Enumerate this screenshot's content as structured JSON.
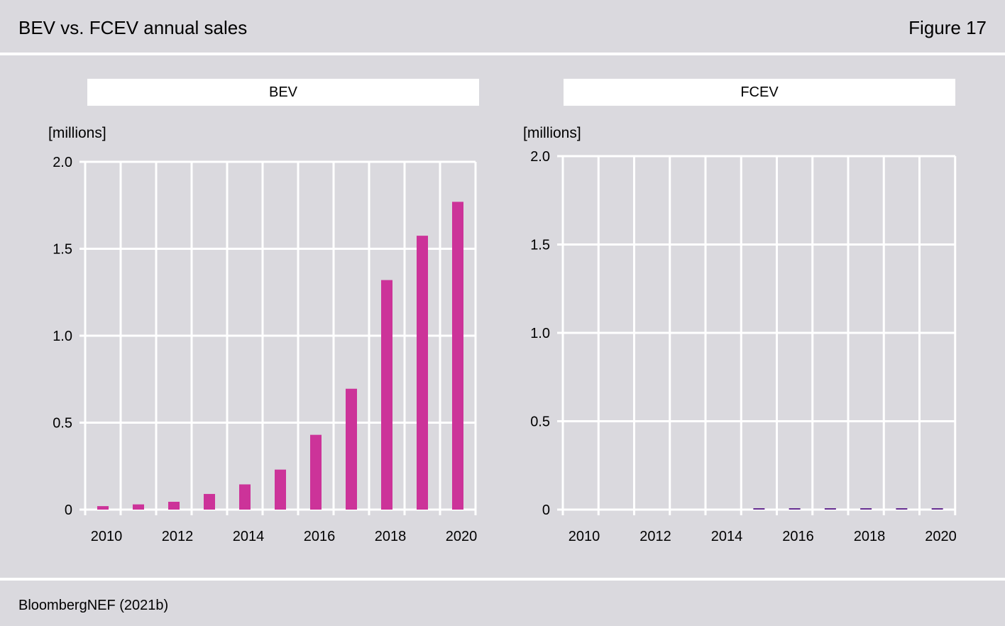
{
  "header": {
    "title": "BEV vs. FCEV annual sales",
    "figure_label": "Figure 17"
  },
  "footer": {
    "source": "BloombergNEF (2021b)"
  },
  "colors": {
    "background": "#dad9de",
    "grid": "#ffffff",
    "bev_bar": "#cc3399",
    "fcev_bar": "#662d91"
  },
  "chart_data": [
    {
      "type": "bar",
      "panel_title": "BEV",
      "ylabel": "[millions]",
      "ylim": [
        0,
        2.0
      ],
      "yticks": [
        0,
        0.5,
        1.0,
        1.5,
        2.0
      ],
      "ytick_labels": [
        "0",
        "0.5",
        "1.0",
        "1.5",
        "2.0"
      ],
      "xtick_labels": [
        "2010",
        "2012",
        "2014",
        "2016",
        "2018",
        "2020"
      ],
      "grid": true,
      "categories": [
        "2010",
        "2011",
        "2012",
        "2013",
        "2014",
        "2015",
        "2016",
        "2017",
        "2018",
        "2019",
        "2020"
      ],
      "series": [
        {
          "color": "#cc3399",
          "values": [
            0.02,
            0.03,
            0.045,
            0.09,
            0.145,
            0.23,
            0.43,
            0.695,
            1.32,
            1.575,
            1.77
          ]
        }
      ]
    },
    {
      "type": "bar",
      "panel_title": "FCEV",
      "ylabel": "[millions]",
      "ylim": [
        0,
        2.0
      ],
      "yticks": [
        0,
        0.5,
        1.0,
        1.5,
        2.0
      ],
      "ytick_labels": [
        "0",
        "0.5",
        "1.0",
        "1.5",
        "2.0"
      ],
      "xtick_labels": [
        "2010",
        "2012",
        "2014",
        "2016",
        "2018",
        "2020"
      ],
      "grid": true,
      "categories": [
        "2010",
        "2011",
        "2012",
        "2013",
        "2014",
        "2015",
        "2016",
        "2017",
        "2018",
        "2019",
        "2020"
      ],
      "series": [
        {
          "color": "#662d91",
          "values": [
            0,
            0,
            0,
            0,
            0,
            0.004,
            0.004,
            0.004,
            0.004,
            0.004,
            0.004
          ]
        }
      ]
    }
  ]
}
